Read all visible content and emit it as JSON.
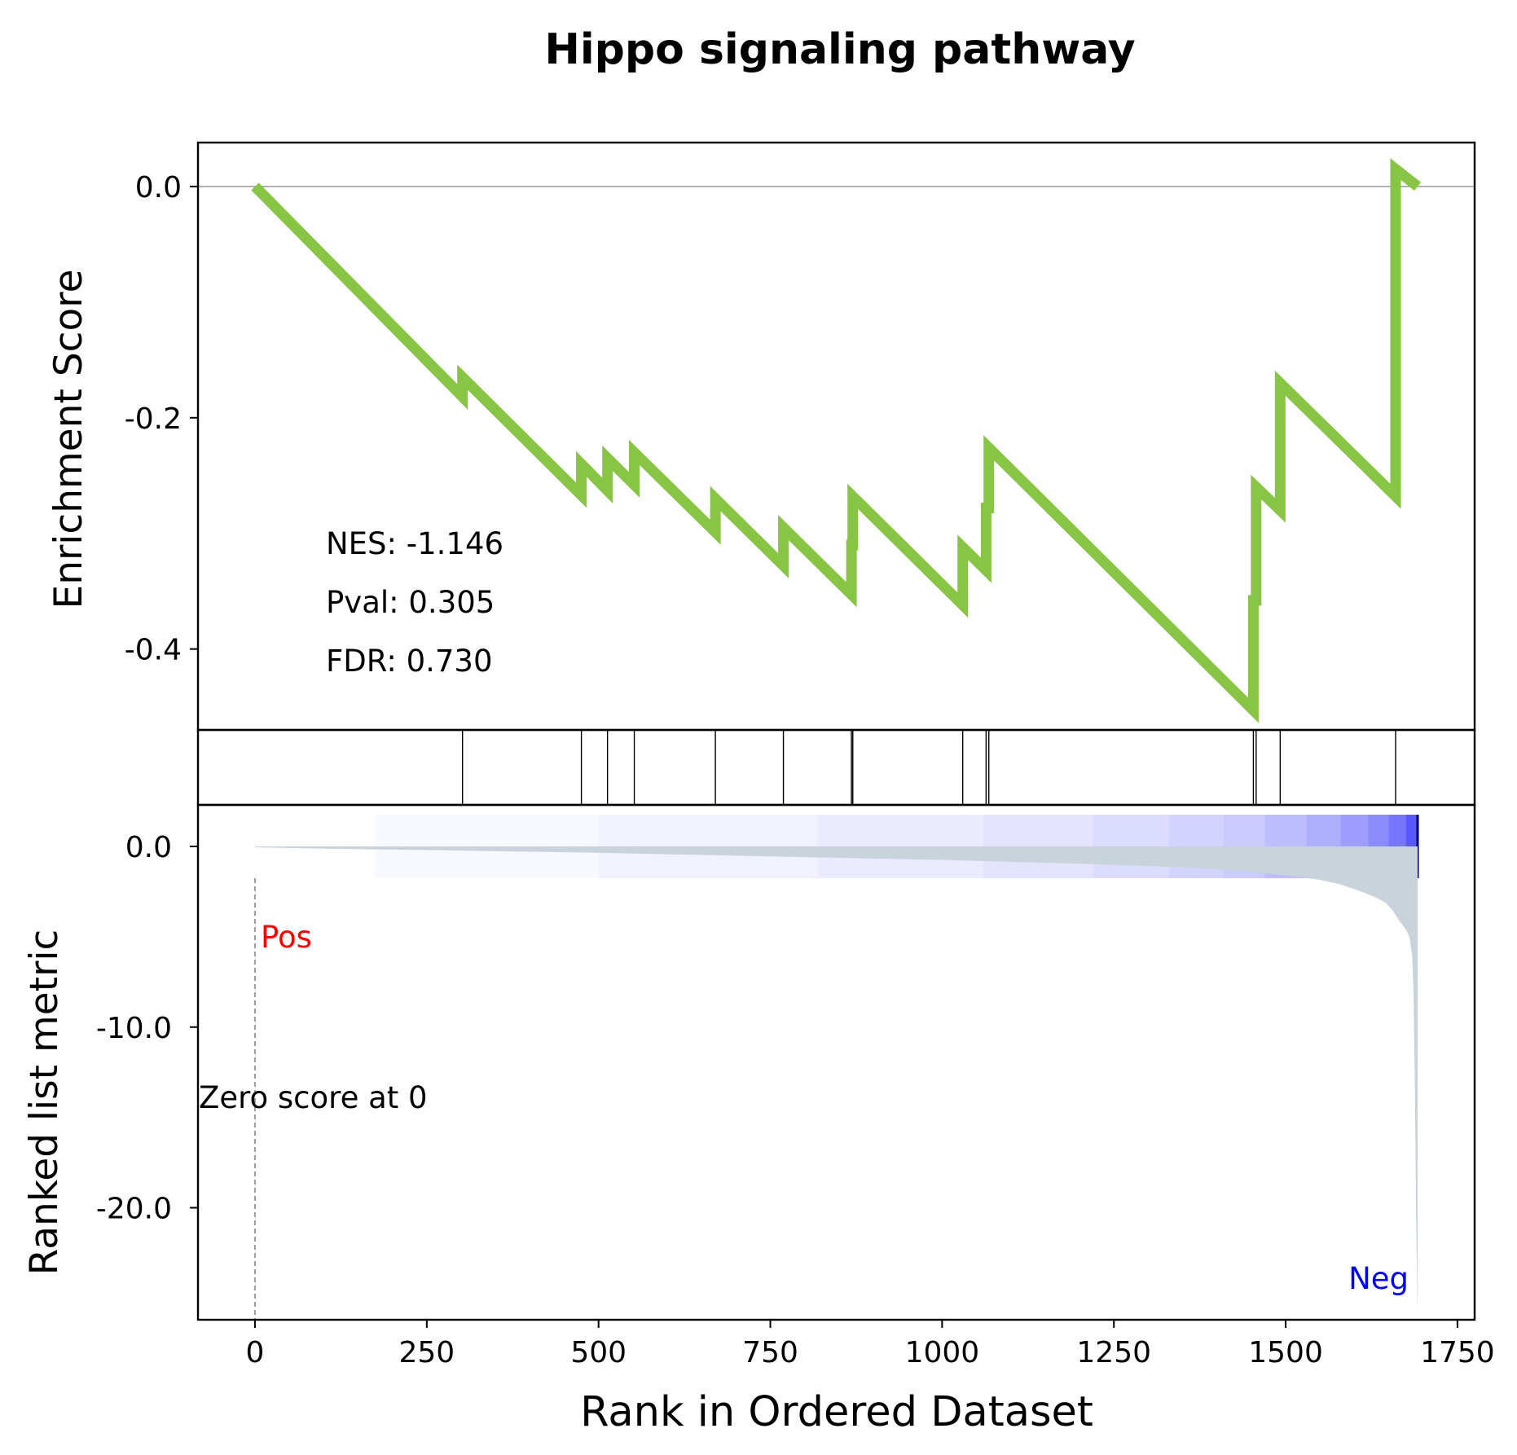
{
  "title": "Hippo signaling pathway",
  "colors": {
    "es_line": "#88c544",
    "pos_label": "#ff0000",
    "neg_label": "#0000ff",
    "metric_fill": "#c8d3dc",
    "axis": "#000000",
    "gradient_low": "#ffffff",
    "gradient_high": "#2222ff"
  },
  "stats": {
    "nes": "NES: -1.146",
    "pval": "Pval: 0.305",
    "fdr": "FDR: 0.730"
  },
  "chart_data": {
    "type": "line",
    "panels": {
      "enrichment": {
        "ylabel": "Enrichment Score",
        "ylim": [
          -0.47,
          0.038
        ],
        "yticks": [
          0.0,
          -0.2,
          -0.4
        ],
        "ytick_labels": [
          "0.0",
          "-0.2",
          "-0.4"
        ],
        "baseline": 0.0,
        "series": {
          "x": [
            0,
            302,
            302,
            475,
            475,
            513,
            513,
            552,
            552,
            670,
            670,
            769,
            769,
            868,
            868,
            870,
            870,
            1030,
            1030,
            1064,
            1064,
            1068,
            1068,
            1453,
            1453,
            1457,
            1457,
            1492,
            1492,
            1660,
            1660,
            1692
          ],
          "y": [
            0.0,
            -0.182,
            -0.165,
            -0.267,
            -0.24,
            -0.263,
            -0.235,
            -0.258,
            -0.23,
            -0.299,
            -0.27,
            -0.328,
            -0.295,
            -0.353,
            -0.31,
            -0.31,
            -0.268,
            -0.362,
            -0.312,
            -0.332,
            -0.278,
            -0.278,
            -0.226,
            -0.453,
            -0.358,
            -0.358,
            -0.26,
            -0.28,
            -0.17,
            -0.268,
            0.015,
            0.0
          ]
        }
      },
      "hits": {
        "positions": [
          302,
          475,
          513,
          552,
          670,
          769,
          868,
          870,
          1030,
          1064,
          1068,
          1453,
          1457,
          1492,
          1660
        ]
      },
      "ranked_metric": {
        "ylabel": "Ranked list metric",
        "ylim": [
          -26.2,
          2.3
        ],
        "yticks": [
          0.0,
          -10.0,
          -20.0
        ],
        "ytick_labels": [
          "0.0",
          "-10.0",
          "-20.0"
        ],
        "curve": {
          "x": [
            0,
            100,
            250,
            500,
            750,
            1000,
            1200,
            1350,
            1450,
            1500,
            1550,
            1580,
            1610,
            1630,
            1645,
            1655,
            1665,
            1675,
            1680,
            1684,
            1686,
            1688,
            1690,
            1692
          ],
          "y": [
            -0.05,
            -0.12,
            -0.2,
            -0.35,
            -0.55,
            -0.75,
            -0.95,
            -1.15,
            -1.4,
            -1.6,
            -1.85,
            -2.1,
            -2.5,
            -2.8,
            -3.1,
            -3.5,
            -4.1,
            -4.6,
            -5.0,
            -6.0,
            -8.0,
            -13.0,
            -21.0,
            -26.0
          ]
        },
        "zero_cross": 0,
        "zero_label": "Zero score at 0",
        "pos_label": "Pos",
        "neg_label": "Neg"
      }
    },
    "x_axis": {
      "label": "Rank in Ordered Dataset",
      "lim": [
        -83,
        1775
      ],
      "ticks": [
        0,
        250,
        500,
        750,
        1000,
        1250,
        1500,
        1750
      ],
      "tick_labels": [
        "0",
        "250",
        "500",
        "750",
        "1000",
        "1250",
        "1500",
        "1750"
      ]
    },
    "heatmap_stops": [
      {
        "x": 0,
        "level": 0.0
      },
      {
        "x": 175,
        "level": 0.03
      },
      {
        "x": 500,
        "level": 0.06
      },
      {
        "x": 820,
        "level": 0.09
      },
      {
        "x": 1060,
        "level": 0.12
      },
      {
        "x": 1220,
        "level": 0.16
      },
      {
        "x": 1330,
        "level": 0.2
      },
      {
        "x": 1410,
        "level": 0.24
      },
      {
        "x": 1470,
        "level": 0.3
      },
      {
        "x": 1530,
        "level": 0.36
      },
      {
        "x": 1580,
        "level": 0.44
      },
      {
        "x": 1620,
        "level": 0.52
      },
      {
        "x": 1650,
        "level": 0.62
      },
      {
        "x": 1675,
        "level": 0.75
      },
      {
        "x": 1692,
        "level": 1.0
      }
    ]
  }
}
